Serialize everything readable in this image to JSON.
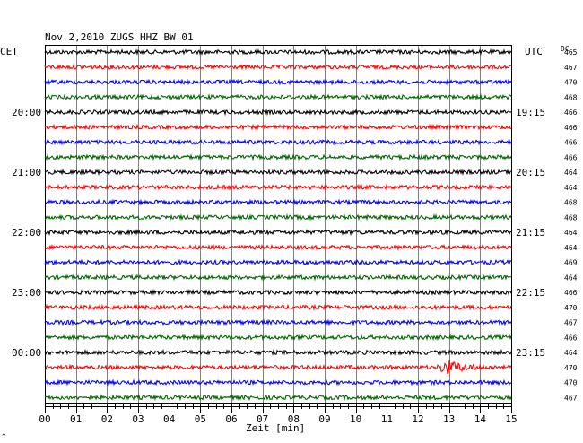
{
  "chart_data": {
    "type": "line",
    "title": "Nov 2,2010   ZUGS HHZ BW 01",
    "left_axis_label": "CET",
    "right_axis_label": "UTC",
    "dc_label": "DC",
    "xlabel": "Zeit [min]",
    "xlim": [
      0,
      15
    ],
    "x_ticks": [
      "00",
      "01",
      "02",
      "03",
      "04",
      "05",
      "06",
      "07",
      "08",
      "09",
      "10",
      "11",
      "12",
      "13",
      "14",
      "15"
    ],
    "grid": true,
    "trace_colors": [
      "#000000",
      "#ff0000",
      "#0000ff",
      "#006400"
    ],
    "left_hour_labels": [
      "20:00",
      "21:00",
      "22:00",
      "23:00",
      "00:00"
    ],
    "right_hour_labels": [
      "19:15",
      "20:15",
      "21:15",
      "22:15",
      "23:15"
    ],
    "hour_label_trace_index": [
      4,
      8,
      12,
      16,
      20
    ],
    "dc_values": [
      "465",
      "467",
      "470",
      "468",
      "466",
      "466",
      "466",
      "466",
      "464",
      "464",
      "468",
      "468",
      "464",
      "464",
      "469",
      "464",
      "466",
      "470",
      "467",
      "466",
      "464",
      "470",
      "470",
      "467"
    ],
    "event": {
      "trace_index": 21,
      "start_min": 12.6,
      "peak_min": 12.9,
      "end_min": 14.5
    },
    "corner_mark": "^"
  }
}
